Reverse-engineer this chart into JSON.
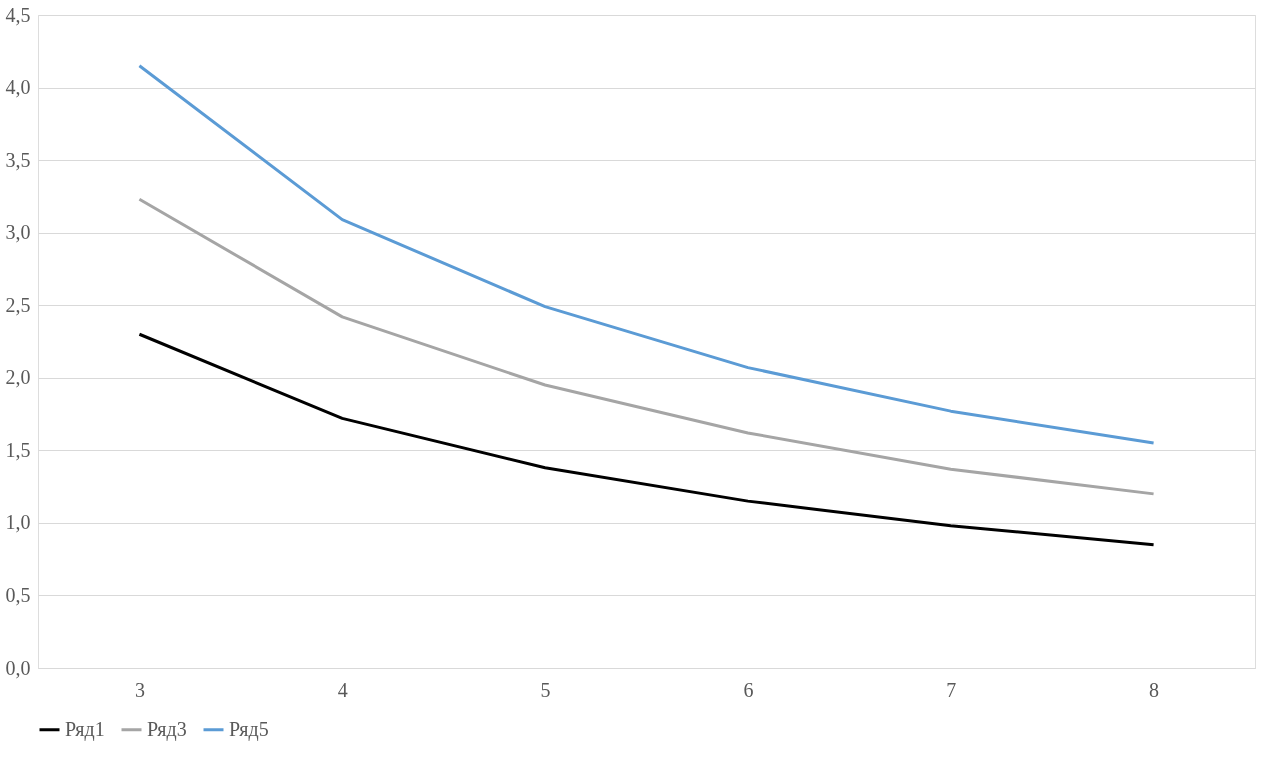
{
  "chart_data": {
    "type": "line",
    "categories": [
      "3",
      "4",
      "5",
      "6",
      "7",
      "8"
    ],
    "series": [
      {
        "name": "Ряд1",
        "color": "#000000",
        "values": [
          2.3,
          1.72,
          1.38,
          1.15,
          0.98,
          0.85
        ]
      },
      {
        "name": "Ряд3",
        "color": "#a5a5a5",
        "values": [
          3.23,
          2.42,
          1.95,
          1.62,
          1.37,
          1.2
        ]
      },
      {
        "name": "Ряд5",
        "color": "#5b9bd5",
        "values": [
          4.15,
          3.09,
          2.49,
          2.07,
          1.77,
          1.55
        ]
      }
    ],
    "ylim": [
      0,
      4.5
    ],
    "yticks": [
      {
        "value": 0,
        "label": "0,0"
      },
      {
        "value": 0.5,
        "label": "0,5"
      },
      {
        "value": 1,
        "label": "1,0"
      },
      {
        "value": 1.5,
        "label": "1,5"
      },
      {
        "value": 2,
        "label": "2,0"
      },
      {
        "value": 2.5,
        "label": "2,5"
      },
      {
        "value": 3,
        "label": "3,0"
      },
      {
        "value": 3.5,
        "label": "3,5"
      },
      {
        "value": 4,
        "label": "4,0"
      },
      {
        "value": 4.5,
        "label": "4,5"
      }
    ],
    "grid": "y",
    "legend": "bottom",
    "marker": "none",
    "line_style": "solid"
  }
}
